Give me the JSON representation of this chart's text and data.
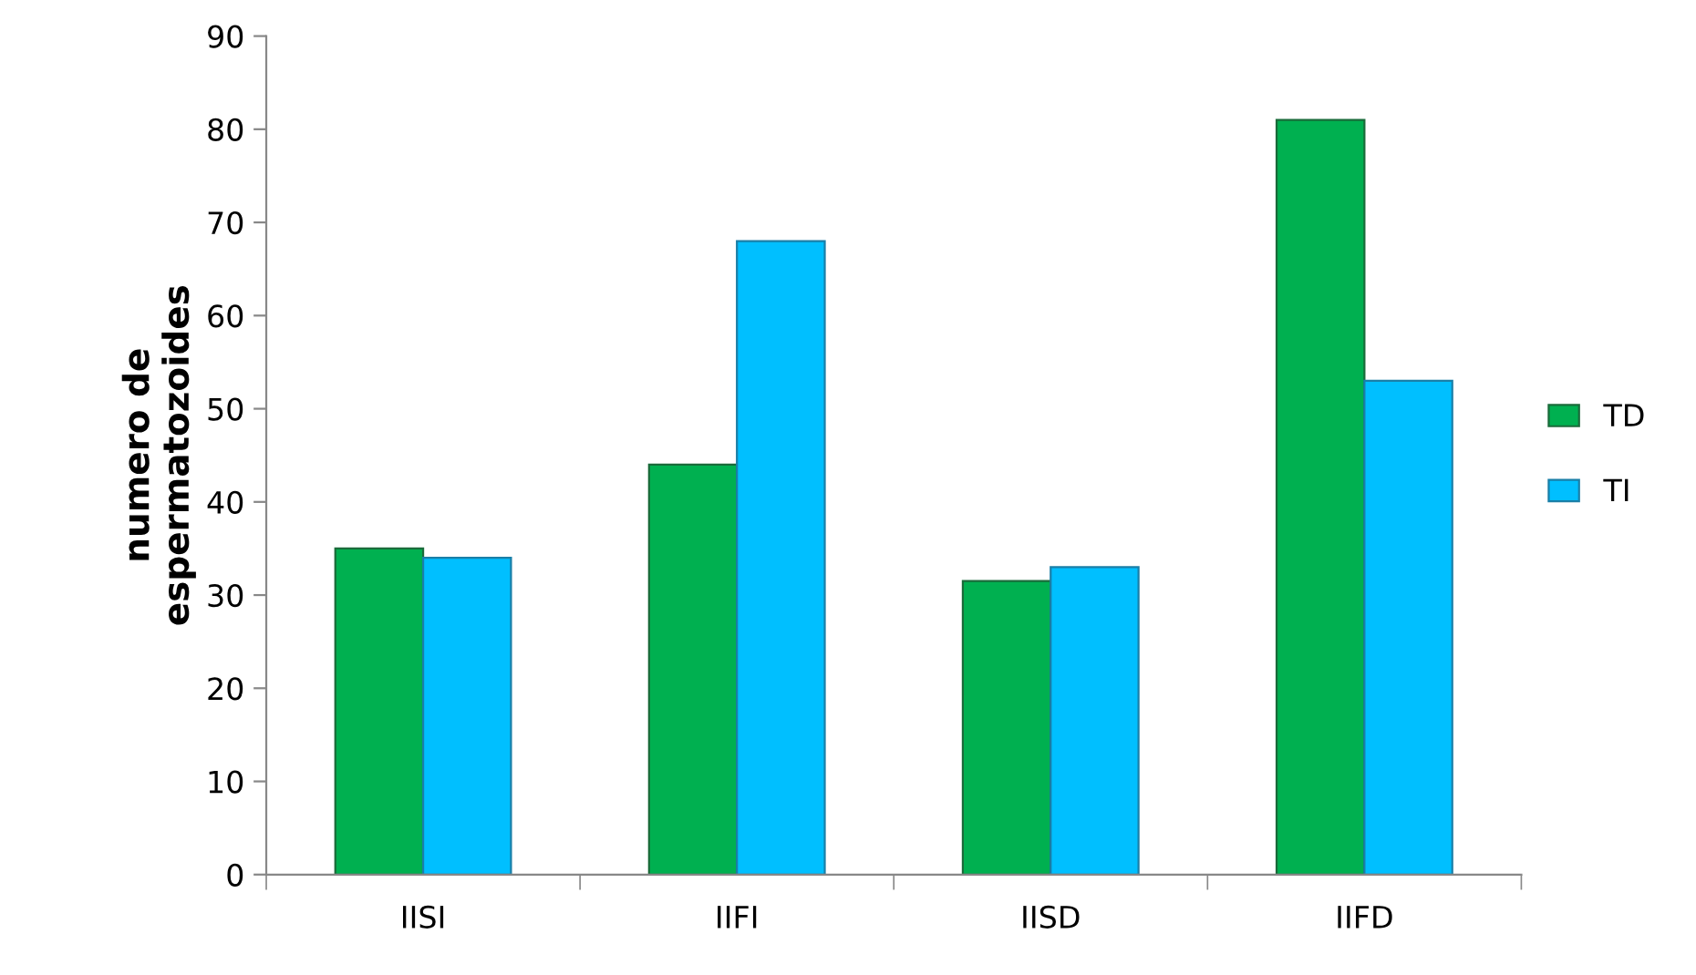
{
  "chart_data": {
    "type": "bar",
    "ylabel": "numero de\nespermatozoides",
    "categories": [
      "IISI",
      "IIFI",
      "IISD",
      "IIFD"
    ],
    "series": [
      {
        "name": "TD",
        "color": "#00b050",
        "values": [
          35,
          44,
          31.5,
          81
        ]
      },
      {
        "name": "TI",
        "color": "#00bfff",
        "values": [
          34,
          68,
          33,
          53
        ]
      }
    ],
    "ylim": [
      0,
      90
    ],
    "yticks": [
      0,
      10,
      20,
      30,
      40,
      50,
      60,
      70,
      80,
      90
    ],
    "grid": false,
    "legend": "right"
  }
}
